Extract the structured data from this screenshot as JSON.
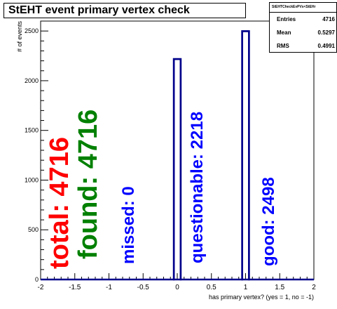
{
  "chart_data": {
    "type": "bar",
    "title": "StEHT event primary vertex check",
    "xlabel": "has primary vertex? (yes = 1, no = -1)",
    "ylabel": "# of events",
    "xlim": [
      -2,
      2
    ],
    "ylim": [
      0,
      2600
    ],
    "x_ticks": [
      "-2",
      "-1.5",
      "-1",
      "-0.5",
      "0",
      "0.5",
      "1",
      "1.5",
      "2"
    ],
    "y_ticks": [
      "0",
      "500",
      "1000",
      "1500",
      "2000",
      "2500"
    ],
    "bins": [
      {
        "x_low": -0.05,
        "x_high": 0.05,
        "value": 2218
      },
      {
        "x_low": 0.95,
        "x_high": 1.05,
        "value": 2498
      }
    ],
    "grid": false,
    "color": "#00008b",
    "stats_box": {
      "header": "StEHTCheckEvPVs<StEHr",
      "rows": [
        {
          "key": "Entries",
          "value": "4716"
        },
        {
          "key": "Mean",
          "value": "0.5297"
        },
        {
          "key": "RMS",
          "value": "0.4991"
        }
      ]
    },
    "annotations": [
      {
        "label": "total:",
        "value": "4716",
        "color": "#ff0000"
      },
      {
        "label": "found:",
        "value": "4716",
        "color": "#008000"
      },
      {
        "label": "missed:",
        "value": "0",
        "color": "#0000ff"
      },
      {
        "label": "questionable:",
        "value": "2218",
        "color": "#0000ff"
      },
      {
        "label": "good:",
        "value": "2498",
        "color": "#0000ff"
      }
    ]
  }
}
